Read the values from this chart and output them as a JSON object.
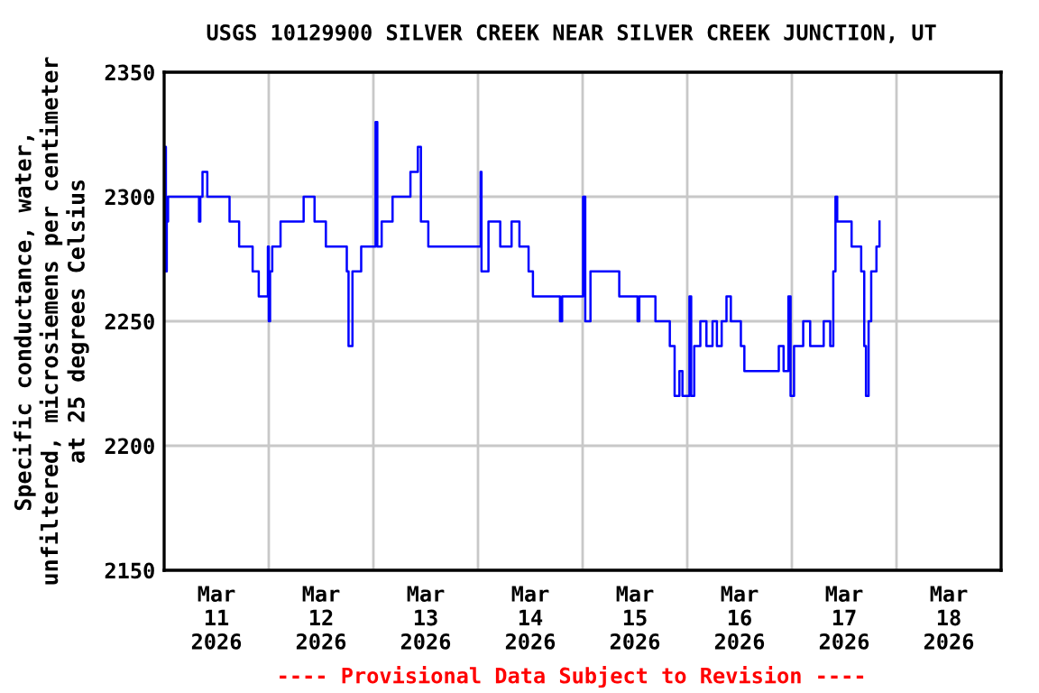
{
  "chart_data": {
    "type": "step",
    "title": "USGS 10129900 SILVER CREEK NEAR SILVER CREEK JUNCTION, UT",
    "ylabel": "Specific conductance, water,\nunfiltered, microsiemens per centimeter\nat 25 degrees Celsius",
    "annotations": [
      "---- Provisional Data Subject to Revision ----"
    ],
    "ylim": [
      2150,
      2350
    ],
    "yticks": [
      2150,
      2200,
      2250,
      2300,
      2350
    ],
    "xlim": [
      "2026-03-11T00:00",
      "2026-03-19T00:00"
    ],
    "xticks": [
      {
        "value": "2026-03-12T00:00",
        "label": null
      },
      {
        "value": "2026-03-13T00:00",
        "label": null
      },
      {
        "value": "2026-03-14T00:00",
        "label": null
      },
      {
        "value": "2026-03-15T00:00",
        "label": null
      },
      {
        "value": "2026-03-16T00:00",
        "label": null
      },
      {
        "value": "2026-03-17T00:00",
        "label": null
      },
      {
        "value": "2026-03-18T00:00",
        "label": null
      },
      {
        "value": "2026-03-11T12:00",
        "label": "Mar\n11\n2026"
      },
      {
        "value": "2026-03-12T12:00",
        "label": "Mar\n12\n2026"
      },
      {
        "value": "2026-03-13T12:00",
        "label": "Mar\n13\n2026"
      },
      {
        "value": "2026-03-14T12:00",
        "label": "Mar\n14\n2026"
      },
      {
        "value": "2026-03-15T12:00",
        "label": "Mar\n15\n2026"
      },
      {
        "value": "2026-03-16T12:00",
        "label": "Mar\n16\n2026"
      },
      {
        "value": "2026-03-17T12:00",
        "label": "Mar\n17\n2026"
      },
      {
        "value": "2026-03-18T12:00",
        "label": "Mar\n18\n2026"
      }
    ],
    "grid": true,
    "legend": false,
    "series": [
      {
        "color": "#0000ff",
        "x": [
          "2026-03-11T00:12",
          "2026-03-11T00:24",
          "2026-03-11T00:36",
          "2026-03-11T00:54",
          "2026-03-11T08:00",
          "2026-03-11T08:18",
          "2026-03-11T08:48",
          "2026-03-11T09:54",
          "2026-03-11T15:00",
          "2026-03-11T17:12",
          "2026-03-11T20:18",
          "2026-03-11T21:42",
          "2026-03-11T23:48",
          "2026-03-12T00:00",
          "2026-03-12T00:18",
          "2026-03-12T00:48",
          "2026-03-12T02:42",
          "2026-03-12T08:00",
          "2026-03-12T10:30",
          "2026-03-12T13:06",
          "2026-03-12T17:54",
          "2026-03-12T18:18",
          "2026-03-12T19:12",
          "2026-03-12T21:12",
          "2026-03-13T00:30",
          "2026-03-13T00:54",
          "2026-03-13T01:54",
          "2026-03-13T04:24",
          "2026-03-13T08:30",
          "2026-03-13T10:12",
          "2026-03-13T10:54",
          "2026-03-13T12:36",
          "2026-03-14T00:36",
          "2026-03-14T00:48",
          "2026-03-14T02:24",
          "2026-03-14T05:06",
          "2026-03-14T07:42",
          "2026-03-14T09:30",
          "2026-03-14T11:36",
          "2026-03-14T12:36",
          "2026-03-14T18:48",
          "2026-03-14T19:18",
          "2026-03-15T00:06",
          "2026-03-15T00:36",
          "2026-03-15T01:48",
          "2026-03-15T08:24",
          "2026-03-15T12:36",
          "2026-03-15T13:00",
          "2026-03-15T16:42",
          "2026-03-15T20:00",
          "2026-03-15T21:06",
          "2026-03-15T22:12",
          "2026-03-15T22:54",
          "2026-03-16T00:30",
          "2026-03-16T00:54",
          "2026-03-16T01:36",
          "2026-03-16T03:00",
          "2026-03-16T04:24",
          "2026-03-16T05:48",
          "2026-03-16T06:48",
          "2026-03-16T07:54",
          "2026-03-16T09:00",
          "2026-03-16T10:00",
          "2026-03-16T12:18",
          "2026-03-16T13:06",
          "2026-03-16T21:00",
          "2026-03-16T22:06",
          "2026-03-16T23:12",
          "2026-03-16T23:42",
          "2026-03-17T00:30",
          "2026-03-17T02:36",
          "2026-03-17T04:12",
          "2026-03-17T07:18",
          "2026-03-17T08:48",
          "2026-03-17T09:30",
          "2026-03-17T10:00",
          "2026-03-17T10:24",
          "2026-03-17T13:42",
          "2026-03-17T15:54",
          "2026-03-17T16:36",
          "2026-03-17T17:00",
          "2026-03-17T17:36",
          "2026-03-17T18:12",
          "2026-03-17T19:24",
          "2026-03-17T20:06"
        ],
        "values": [
          2320,
          2270,
          2290,
          2300,
          2290,
          2300,
          2310,
          2300,
          2290,
          2280,
          2270,
          2260,
          2280,
          2250,
          2270,
          2280,
          2290,
          2300,
          2290,
          2280,
          2270,
          2240,
          2270,
          2280,
          2330,
          2280,
          2290,
          2300,
          2310,
          2320,
          2290,
          2280,
          2310,
          2270,
          2290,
          2280,
          2290,
          2280,
          2270,
          2260,
          2250,
          2260,
          2300,
          2250,
          2270,
          2260,
          2250,
          2260,
          2250,
          2240,
          2220,
          2230,
          2220,
          2260,
          2220,
          2240,
          2250,
          2240,
          2250,
          2240,
          2250,
          2260,
          2250,
          2240,
          2230,
          2240,
          2230,
          2260,
          2220,
          2240,
          2250,
          2240,
          2250,
          2240,
          2270,
          2300,
          2290,
          2280,
          2270,
          2240,
          2220,
          2250,
          2270,
          2280,
          2290
        ]
      }
    ]
  }
}
